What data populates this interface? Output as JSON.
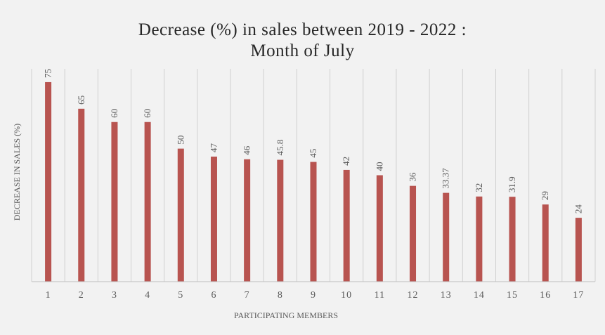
{
  "chart_data": {
    "type": "bar",
    "title": "Decrease (%) in sales between 2019 - 2022 :",
    "subtitle": "Month of July",
    "xlabel": "PARTICIPATING MEMBERS",
    "ylabel": "DECREASE IN SALES (%)",
    "categories": [
      "1",
      "2",
      "3",
      "4",
      "5",
      "6",
      "7",
      "8",
      "9",
      "10",
      "11",
      "12",
      "13",
      "14",
      "15",
      "16",
      "17"
    ],
    "values": [
      75,
      65,
      60,
      60,
      50,
      47,
      46,
      45.8,
      45,
      42,
      40,
      36,
      33.37,
      32,
      31.9,
      29,
      24
    ],
    "data_labels": [
      "75",
      "65",
      "60",
      "60",
      "50",
      "47",
      "46",
      "45.8",
      "45",
      "42",
      "40",
      "36",
      "33.37",
      "32",
      "31.9",
      "29",
      "24"
    ],
    "ylim": [
      0,
      80
    ],
    "grid": "vertical",
    "legend": "none",
    "colors": {
      "bar": "#b85450",
      "grid": "#d0d0d0",
      "axis": "#bfbfbf",
      "background": "#f2f2f2",
      "text": "#595959"
    }
  }
}
